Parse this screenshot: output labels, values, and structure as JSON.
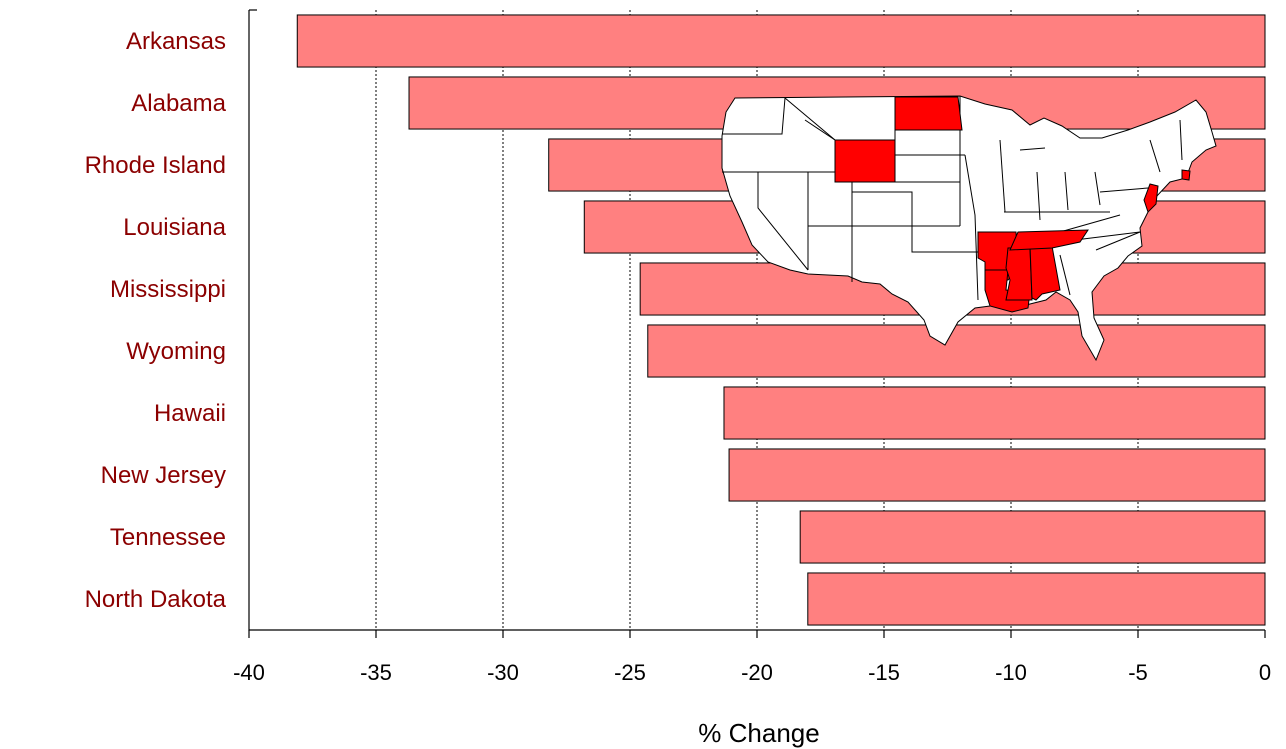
{
  "chart_data": {
    "type": "bar",
    "orientation": "horizontal",
    "categories": [
      "Arkansas",
      "Alabama",
      "Rhode Island",
      "Louisiana",
      "Mississippi",
      "Wyoming",
      "Hawaii",
      "New Jersey",
      "Tennessee",
      "North Dakota"
    ],
    "values": [
      -38.1,
      -33.7,
      -28.2,
      -26.8,
      -24.6,
      -24.3,
      -21.3,
      -21.1,
      -18.3,
      -18.0
    ],
    "xlabel": "% Change",
    "ylabel": "",
    "xlim": [
      -40,
      0
    ],
    "xticks": [
      "-40",
      "-35",
      "-30",
      "-25",
      "-20",
      "-15",
      "-10",
      "-5",
      "0"
    ],
    "grid": "vertical dotted",
    "colors": {
      "bar_fill": "#ff8080",
      "category_label": "#8b0000",
      "highlighted_state": "#ff0000"
    },
    "inset_map": {
      "description_type": "US states map",
      "highlighted_states": [
        "Arkansas",
        "Alabama",
        "Rhode Island",
        "Louisiana",
        "Mississippi",
        "Wyoming",
        "New Jersey",
        "Tennessee",
        "North Dakota"
      ]
    }
  }
}
